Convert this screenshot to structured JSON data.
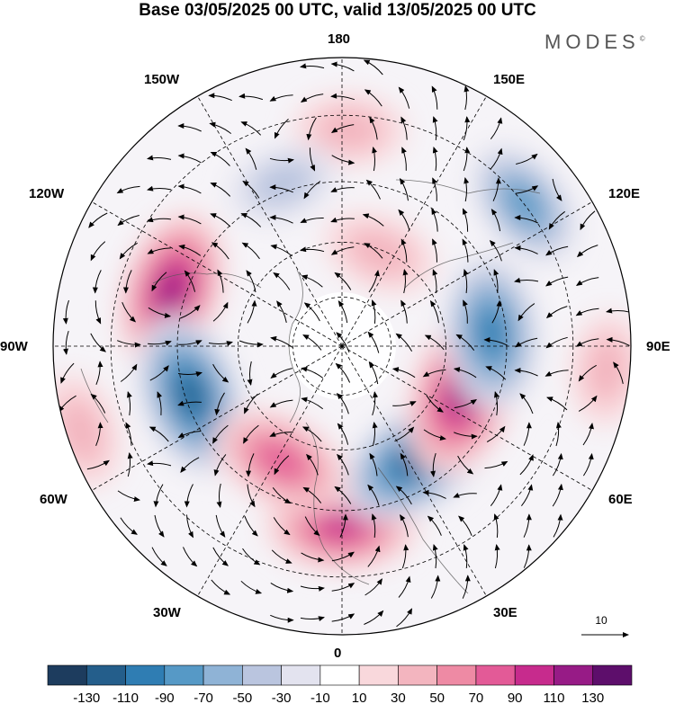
{
  "title": "Base 03/05/2025 00 UTC, valid 13/05/2025 00 UTC",
  "brand": "MODES",
  "brand_mark": "©",
  "longitude_labels": {
    "lon_180": "180",
    "lon_150w": "150W",
    "lon_150e": "150E",
    "lon_120w": "120W",
    "lon_120e": "120E",
    "lon_90w": "90W",
    "lon_90e": "90E",
    "lon_60w": "60W",
    "lon_60e": "60E",
    "lon_30w": "30W",
    "lon_30e": "30E",
    "lon_0": "0"
  },
  "reference_vector": {
    "value": "10"
  },
  "colorbar": {
    "colors": [
      "#1d3c5e",
      "#245e8b",
      "#2f7db3",
      "#5699c6",
      "#8fb3d6",
      "#bac5df",
      "#e3e3ef",
      "#ffffff",
      "#f9d8dc",
      "#f3b5bf",
      "#ee8aa4",
      "#e35a97",
      "#c72b8d",
      "#971b86",
      "#5d0e6b"
    ],
    "ticks": [
      "-130",
      "-110",
      "-90",
      "-70",
      "-50",
      "-30",
      "-10",
      "10",
      "30",
      "50",
      "70",
      "90",
      "110",
      "130"
    ]
  },
  "map": {
    "projection": "north polar stereographic",
    "field_anomalies": [
      {
        "label": "positive-anomaly",
        "lon": 0,
        "r": 0.62,
        "value": 95
      },
      {
        "label": "negative-anomaly",
        "lon": 33,
        "r": 0.47,
        "value": -110
      },
      {
        "label": "positive-anomaly",
        "lon": 70,
        "r": 0.45,
        "value": 125
      },
      {
        "label": "negative-anomaly",
        "lon": 95,
        "r": 0.52,
        "value": -100
      },
      {
        "label": "negative-anomaly",
        "lon": 128,
        "r": 0.8,
        "value": -70
      },
      {
        "label": "positive-anomaly",
        "lon": 178,
        "r": 0.75,
        "value": 40
      },
      {
        "label": "positive-anomaly",
        "lon": 158,
        "r": 0.35,
        "value": 45
      },
      {
        "label": "negative-anomaly",
        "lon": -160,
        "r": 0.6,
        "value": -40
      },
      {
        "label": "positive-anomaly",
        "lon": -108,
        "r": 0.62,
        "value": 110
      },
      {
        "label": "negative-anomaly",
        "lon": -72,
        "r": 0.55,
        "value": -110
      },
      {
        "label": "positive-anomaly",
        "lon": -28,
        "r": 0.45,
        "value": 85
      },
      {
        "label": "positive-anomaly",
        "lon": -72,
        "r": 0.95,
        "value": 45
      },
      {
        "label": "positive-anomaly",
        "lon": 85,
        "r": 0.92,
        "value": 40
      }
    ]
  }
}
